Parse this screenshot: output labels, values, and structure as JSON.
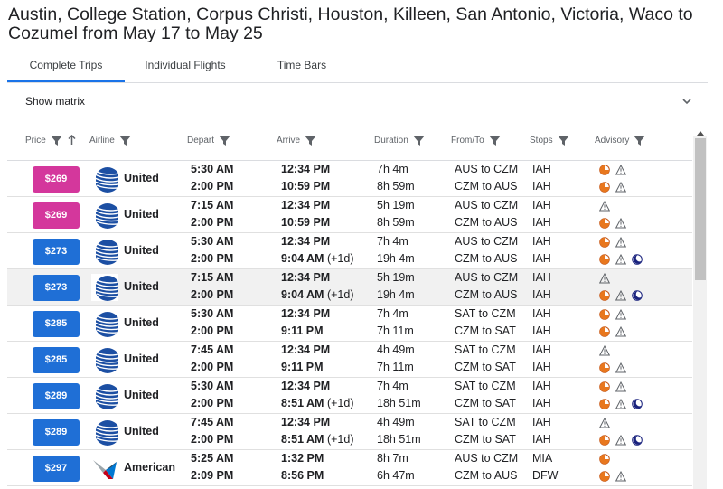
{
  "header": {
    "title": "Austin, College Station, Corpus Christi, Houston, Killeen, San Antonio, Victoria, Waco to Cozumel from May 17 to May 25"
  },
  "tabs": [
    {
      "label": "Complete Trips",
      "active": true
    },
    {
      "label": "Individual Flights",
      "active": false
    },
    {
      "label": "Time Bars",
      "active": false
    }
  ],
  "matrix": {
    "label": "Show matrix"
  },
  "columns": {
    "price": "Price",
    "airline": "Airline",
    "depart": "Depart",
    "arrive": "Arrive",
    "duration": "Duration",
    "fromto": "From/To",
    "stops": "Stops",
    "advisory": "Advisory"
  },
  "colors": {
    "price_magenta": "#d4379c",
    "price_blue": "#1f6fd6",
    "accent": "#1a73e8"
  },
  "icons": {
    "advisory_orange": "orange-partial-circle-icon",
    "advisory_warning": "warning-triangle-icon",
    "advisory_moon": "moon-icon"
  },
  "trips": [
    {
      "price": "$269",
      "price_style": "magenta",
      "airline": "United",
      "logo": "united-logo",
      "highlight": false,
      "legs": [
        {
          "depart": "5:30 AM",
          "arrive": "12:34 PM",
          "plus": "",
          "duration": "7h 4m",
          "fromto": "AUS to CZM",
          "stops": "IAH",
          "advisories": [
            "orange",
            "warning"
          ]
        },
        {
          "depart": "2:00 PM",
          "arrive": "10:59 PM",
          "plus": "",
          "duration": "8h 59m",
          "fromto": "CZM to AUS",
          "stops": "IAH",
          "advisories": [
            "orange",
            "warning"
          ]
        }
      ]
    },
    {
      "price": "$269",
      "price_style": "magenta",
      "airline": "United",
      "logo": "united-logo",
      "highlight": false,
      "legs": [
        {
          "depart": "7:15 AM",
          "arrive": "12:34 PM",
          "plus": "",
          "duration": "5h 19m",
          "fromto": "AUS to CZM",
          "stops": "IAH",
          "advisories": [
            "warning"
          ]
        },
        {
          "depart": "2:00 PM",
          "arrive": "10:59 PM",
          "plus": "",
          "duration": "8h 59m",
          "fromto": "CZM to AUS",
          "stops": "IAH",
          "advisories": [
            "orange",
            "warning"
          ]
        }
      ]
    },
    {
      "price": "$273",
      "price_style": "blue",
      "airline": "United",
      "logo": "united-logo",
      "highlight": false,
      "legs": [
        {
          "depart": "5:30 AM",
          "arrive": "12:34 PM",
          "plus": "",
          "duration": "7h 4m",
          "fromto": "AUS to CZM",
          "stops": "IAH",
          "advisories": [
            "orange",
            "warning"
          ]
        },
        {
          "depart": "2:00 PM",
          "arrive": "9:04 AM",
          "plus": "(+1d)",
          "duration": "19h 4m",
          "fromto": "CZM to AUS",
          "stops": "IAH",
          "advisories": [
            "orange",
            "warning",
            "moon"
          ]
        }
      ]
    },
    {
      "price": "$273",
      "price_style": "blue",
      "airline": "United",
      "logo": "united-logo",
      "highlight": true,
      "legs": [
        {
          "depart": "7:15 AM",
          "arrive": "12:34 PM",
          "plus": "",
          "duration": "5h 19m",
          "fromto": "AUS to CZM",
          "stops": "IAH",
          "advisories": [
            "warning"
          ]
        },
        {
          "depart": "2:00 PM",
          "arrive": "9:04 AM",
          "plus": "(+1d)",
          "duration": "19h 4m",
          "fromto": "CZM to AUS",
          "stops": "IAH",
          "advisories": [
            "orange",
            "warning",
            "moon"
          ]
        }
      ]
    },
    {
      "price": "$285",
      "price_style": "blue",
      "airline": "United",
      "logo": "united-logo",
      "highlight": false,
      "legs": [
        {
          "depart": "5:30 AM",
          "arrive": "12:34 PM",
          "plus": "",
          "duration": "7h 4m",
          "fromto": "SAT to CZM",
          "stops": "IAH",
          "advisories": [
            "orange",
            "warning"
          ]
        },
        {
          "depart": "2:00 PM",
          "arrive": "9:11 PM",
          "plus": "",
          "duration": "7h 11m",
          "fromto": "CZM to SAT",
          "stops": "IAH",
          "advisories": [
            "orange",
            "warning"
          ]
        }
      ]
    },
    {
      "price": "$285",
      "price_style": "blue",
      "airline": "United",
      "logo": "united-logo",
      "highlight": false,
      "legs": [
        {
          "depart": "7:45 AM",
          "arrive": "12:34 PM",
          "plus": "",
          "duration": "4h 49m",
          "fromto": "SAT to CZM",
          "stops": "IAH",
          "advisories": [
            "warning"
          ]
        },
        {
          "depart": "2:00 PM",
          "arrive": "9:11 PM",
          "plus": "",
          "duration": "7h 11m",
          "fromto": "CZM to SAT",
          "stops": "IAH",
          "advisories": [
            "orange",
            "warning"
          ]
        }
      ]
    },
    {
      "price": "$289",
      "price_style": "blue",
      "airline": "United",
      "logo": "united-logo",
      "highlight": false,
      "legs": [
        {
          "depart": "5:30 AM",
          "arrive": "12:34 PM",
          "plus": "",
          "duration": "7h 4m",
          "fromto": "SAT to CZM",
          "stops": "IAH",
          "advisories": [
            "orange",
            "warning"
          ]
        },
        {
          "depart": "2:00 PM",
          "arrive": "8:51 AM",
          "plus": "(+1d)",
          "duration": "18h 51m",
          "fromto": "CZM to SAT",
          "stops": "IAH",
          "advisories": [
            "orange",
            "warning",
            "moon"
          ]
        }
      ]
    },
    {
      "price": "$289",
      "price_style": "blue",
      "airline": "United",
      "logo": "united-logo",
      "highlight": false,
      "legs": [
        {
          "depart": "7:45 AM",
          "arrive": "12:34 PM",
          "plus": "",
          "duration": "4h 49m",
          "fromto": "SAT to CZM",
          "stops": "IAH",
          "advisories": [
            "warning"
          ]
        },
        {
          "depart": "2:00 PM",
          "arrive": "8:51 AM",
          "plus": "(+1d)",
          "duration": "18h 51m",
          "fromto": "CZM to SAT",
          "stops": "IAH",
          "advisories": [
            "orange",
            "warning",
            "moon"
          ]
        }
      ]
    },
    {
      "price": "$297",
      "price_style": "blue",
      "airline": "American",
      "logo": "american-logo",
      "highlight": false,
      "legs": [
        {
          "depart": "5:25 AM",
          "arrive": "1:32 PM",
          "plus": "",
          "duration": "8h 7m",
          "fromto": "AUS to CZM",
          "stops": "MIA",
          "advisories": [
            "orange"
          ]
        },
        {
          "depart": "2:09 PM",
          "arrive": "8:56 PM",
          "plus": "",
          "duration": "6h 47m",
          "fromto": "CZM to AUS",
          "stops": "DFW",
          "advisories": [
            "orange",
            "warning"
          ]
        }
      ]
    }
  ]
}
